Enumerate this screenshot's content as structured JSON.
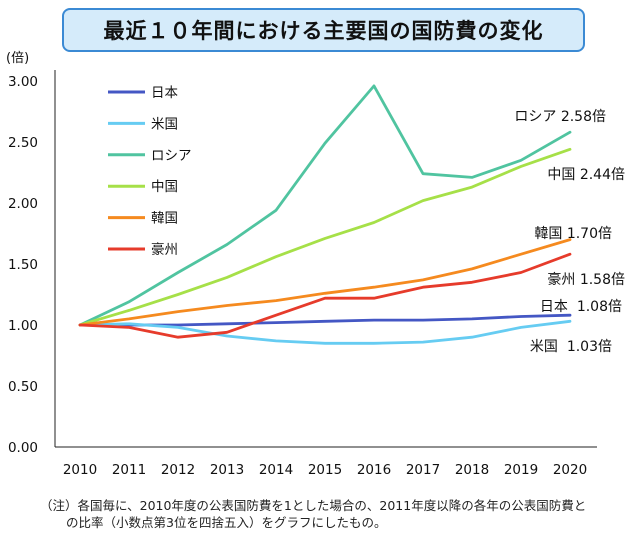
{
  "chart_data": {
    "type": "line",
    "title": "最近１０年間における主要国の国防費の変化",
    "ylabel": "(倍)",
    "xlabel": "",
    "ylim": [
      0,
      3
    ],
    "grid": false,
    "legend_position": "top-left",
    "yticks": [
      {
        "value": 3.0,
        "label": "3.00"
      },
      {
        "value": 2.5,
        "label": "2.50"
      },
      {
        "value": 2.0,
        "label": "2.00"
      },
      {
        "value": 1.5,
        "label": "1.50"
      },
      {
        "value": 1.0,
        "label": "1.00"
      },
      {
        "value": 0.5,
        "label": "0.50"
      },
      {
        "value": 0.0,
        "label": "0.00"
      }
    ],
    "categories": [
      "2010",
      "2011",
      "2012",
      "2013",
      "2014",
      "2015",
      "2016",
      "2017",
      "2018",
      "2019",
      "2020"
    ],
    "series": [
      {
        "name": "日本",
        "color": "#4457c4",
        "values": [
          1.0,
          1.0,
          1.0,
          1.01,
          1.02,
          1.03,
          1.04,
          1.04,
          1.05,
          1.07,
          1.08
        ],
        "end_label": "日本  1.08倍"
      },
      {
        "name": "米国",
        "color": "#66ccf2",
        "values": [
          1.0,
          1.01,
          0.98,
          0.91,
          0.87,
          0.85,
          0.85,
          0.86,
          0.9,
          0.98,
          1.03
        ],
        "end_label": "米国  1.03倍"
      },
      {
        "name": "ロシア",
        "color": "#50c4a0",
        "values": [
          1.0,
          1.19,
          1.43,
          1.66,
          1.94,
          2.49,
          2.96,
          2.24,
          2.21,
          2.35,
          2.58
        ],
        "end_label": "ロシア 2.58倍"
      },
      {
        "name": "中国",
        "color": "#a6e048",
        "values": [
          1.0,
          1.12,
          1.25,
          1.39,
          1.56,
          1.71,
          1.84,
          2.02,
          2.13,
          2.3,
          2.44
        ],
        "end_label": "中国 2.44倍"
      },
      {
        "name": "韓国",
        "color": "#f58a1f",
        "values": [
          1.0,
          1.05,
          1.11,
          1.16,
          1.2,
          1.26,
          1.31,
          1.37,
          1.46,
          1.58,
          1.7
        ],
        "end_label": "韓国 1.70倍"
      },
      {
        "name": "豪州",
        "color": "#e63b2b",
        "values": [
          1.0,
          0.98,
          0.9,
          0.94,
          1.08,
          1.22,
          1.22,
          1.31,
          1.35,
          1.43,
          1.58
        ],
        "end_label": "豪州 1.58倍"
      }
    ]
  },
  "note": {
    "lines": [
      "（注）各国毎に、2010年度の公表国防費を1とした場合の、2011年度以降の各年の公表国防費と",
      "の比率（小数点第3位を四捨五入）をグラフにしたもの。"
    ]
  }
}
